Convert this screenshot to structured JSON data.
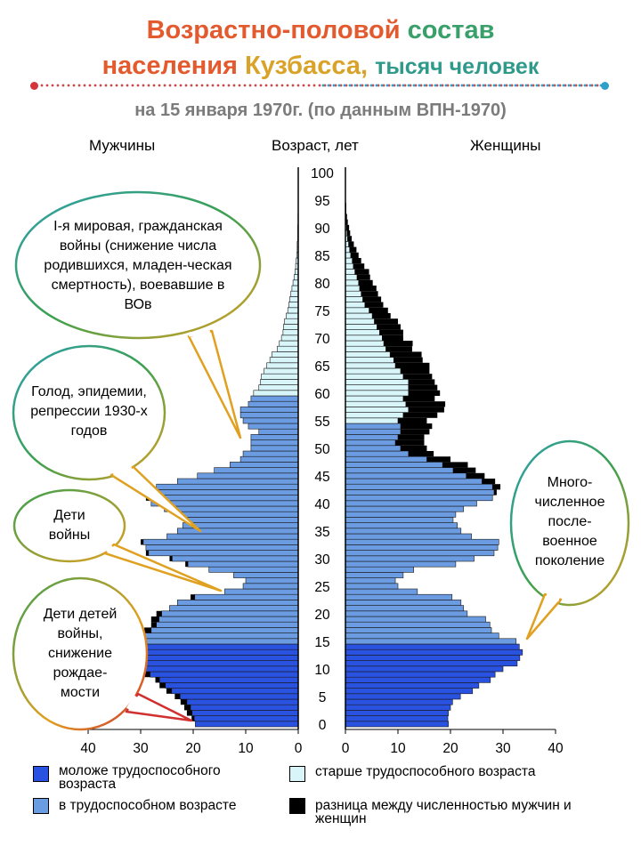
{
  "title_line1_a": "Возрастно-половой",
  "title_line1_b": "состав",
  "title_line2_a": "населения",
  "title_line2_b": "Кузбасса,",
  "title_line2_c": "тысяч человек",
  "subtitle": "на 15 января 1970г. (по данным ВПН-1970)",
  "header_male": "Мужчины",
  "header_age": "Возраст, лет",
  "header_female": "Женщины",
  "annotations": {
    "ww1": "I-я мировая, гражданская войны (снижение числа родившихся, младен-ческая смертность), воевавшие в ВОв",
    "famine": "Голод, эпидемии, репрессии 1930-х годов",
    "war_children": "Дети войны",
    "grandchildren": "Дети детей войны, снижение рождае-мости",
    "boom": "Много-численное после-военное поколение"
  },
  "legend": {
    "young": "моложе трудоспособного возраста",
    "working": "в трудоспособном возрасте",
    "old": "старше трудоспособного возраста",
    "diff": "разница между численностью мужчин и женщин"
  },
  "colors": {
    "young": "#2a52e0",
    "working": "#6b9be0",
    "old": "#d8f6fa",
    "diff": "#000000",
    "title_red": "#e45a2f",
    "title_green": "#3aa06a",
    "title_teal": "#2f9a8a"
  },
  "chart_data": {
    "type": "bar",
    "orientation": "horizontal-pyramid",
    "age_axis": {
      "min": 0,
      "max": 100,
      "ticks": [
        0,
        5,
        10,
        15,
        20,
        25,
        30,
        35,
        40,
        45,
        50,
        55,
        60,
        65,
        70,
        75,
        80,
        85,
        90,
        95,
        100
      ]
    },
    "x_ticks_male": [
      40,
      30,
      20,
      10,
      0
    ],
    "x_ticks_female": [
      0,
      10,
      20,
      30,
      40
    ],
    "xlim": [
      0,
      40
    ],
    "ages": [
      0,
      1,
      2,
      3,
      4,
      5,
      6,
      7,
      8,
      9,
      10,
      11,
      12,
      13,
      14,
      15,
      16,
      17,
      18,
      19,
      20,
      21,
      22,
      23,
      24,
      25,
      26,
      27,
      28,
      29,
      30,
      31,
      32,
      33,
      34,
      35,
      36,
      37,
      38,
      39,
      40,
      41,
      42,
      43,
      44,
      45,
      46,
      47,
      48,
      49,
      50,
      51,
      52,
      53,
      54,
      55,
      56,
      57,
      58,
      59,
      60,
      61,
      62,
      63,
      64,
      65,
      66,
      67,
      68,
      69,
      70,
      71,
      72,
      73,
      74,
      75,
      76,
      77,
      78,
      79,
      80,
      81,
      82,
      83,
      84,
      85,
      86,
      87,
      88,
      89,
      90,
      91,
      92,
      93,
      94,
      95,
      96,
      97,
      98,
      99
    ],
    "series": [
      {
        "name": "Мужчины",
        "values": [
          19.6,
          19.8,
          20.2,
          20.5,
          21.2,
          22.5,
          24.1,
          25.3,
          26.4,
          28.2,
          30.0,
          32.3,
          33.3,
          33.8,
          33.0,
          32.8,
          29.5,
          28.0,
          27.0,
          26.5,
          26.0,
          24.5,
          23.0,
          19.7,
          14.0,
          10.5,
          10.0,
          12.3,
          17.0,
          21.0,
          24.0,
          28.5,
          29.0,
          29.5,
          25.0,
          23.0,
          22.0,
          21.5,
          22.5,
          25.5,
          28.0,
          28.5,
          29.0,
          27.0,
          23.0,
          19.2,
          16.0,
          13.0,
          11.0,
          10.5,
          9.0,
          9.0,
          9.0,
          7.5,
          9.5,
          10.5,
          11.0,
          11.0,
          9.5,
          9.0,
          8.5,
          7.5,
          7.2,
          7.0,
          6.5,
          6.0,
          5.4,
          5.0,
          4.0,
          3.6,
          3.2,
          2.9,
          2.8,
          2.6,
          2.3,
          2.0,
          1.8,
          1.6,
          1.4,
          1.2,
          1.0,
          0.8,
          0.6,
          0.5,
          0.4,
          0.3,
          0.2,
          0.2,
          0.1,
          0.1,
          0.1,
          0.05,
          0.05,
          0.0,
          0.0,
          0.0,
          0.0,
          0.0,
          0.0,
          0.0
        ]
      },
      {
        "name": "Женщины",
        "values": [
          19.6,
          19.5,
          19.6,
          20.0,
          20.4,
          21.9,
          24.2,
          25.4,
          27.6,
          28.5,
          30.0,
          32.7,
          33.2,
          33.7,
          33.1,
          32.5,
          29.2,
          27.8,
          27.5,
          26.7,
          23.2,
          22.5,
          22.0,
          20.3,
          13.7,
          10.0,
          9.5,
          11.0,
          13.0,
          21.0,
          24.5,
          28.3,
          29.0,
          29.2,
          24.0,
          22.0,
          21.3,
          20.5,
          21.0,
          22.5,
          25.0,
          28.0,
          28.3,
          28.0,
          26.0,
          23.0,
          20.5,
          18.5,
          15.5,
          12.0,
          10.5,
          9.5,
          10.0,
          10.5,
          10.5,
          10.0,
          11.0,
          12.0,
          11.5,
          11.0,
          12.0,
          12.0,
          12.0,
          11.0,
          10.5,
          9.5,
          9.2,
          8.5,
          7.7,
          7.3,
          7.0,
          6.5,
          6.0,
          5.5,
          5.1,
          4.5,
          3.7,
          3.3,
          3.0,
          2.7,
          2.5,
          2.2,
          1.8,
          1.5,
          1.3,
          1.0,
          0.8,
          0.6,
          0.4,
          0.3,
          0.2,
          0.15,
          0.1,
          0.05,
          0.05,
          0.0,
          0.0,
          0.0,
          0.0,
          0.0
        ]
      },
      {
        "name": "разница между численностью мужчин и женщин",
        "side": [
          0,
          0,
          0,
          0,
          0,
          0,
          0,
          0,
          0,
          0,
          0,
          0,
          0,
          0,
          0,
          0,
          0,
          0,
          0,
          0,
          0,
          0,
          0,
          0,
          0,
          0,
          0,
          0,
          0,
          0,
          0,
          0,
          0,
          0,
          0,
          0,
          0,
          0,
          0,
          0,
          0,
          0,
          0,
          0,
          0,
          0,
          0,
          0,
          0,
          0,
          0,
          0,
          0,
          0,
          0,
          0,
          0,
          0,
          0,
          0,
          0,
          0,
          0,
          0,
          0,
          0,
          0,
          0,
          0,
          0,
          0,
          0,
          0,
          0,
          0,
          0,
          0,
          0,
          0,
          0,
          0,
          0,
          0,
          0,
          0,
          0,
          0,
          0,
          0,
          0,
          0,
          0,
          0,
          0,
          0,
          0,
          0,
          0,
          0,
          0
        ]
      }
    ],
    "female_extra": [
      0,
      0,
      0,
      0,
      0,
      0,
      0,
      0,
      0,
      0,
      0,
      0,
      0,
      0,
      0,
      0,
      0,
      0,
      0,
      0,
      0,
      0,
      0,
      0,
      0,
      0,
      0,
      0,
      0,
      0,
      0,
      0,
      0,
      0,
      0,
      0,
      0,
      0,
      0,
      0,
      0,
      0,
      0.5,
      1.5,
      2.5,
      3.5,
      4.3,
      4.8,
      4.5,
      4.8,
      5.0,
      5.5,
      5.0,
      5.5,
      6.0,
      5.5,
      6.5,
      6.8,
      7.5,
      6.0,
      6.0,
      5.5,
      5.0,
      5.5,
      5.5,
      6.5,
      5.5,
      6.0,
      5.0,
      5.5,
      4.0,
      4.5,
      4.5,
      4.5,
      3.5,
      3.6,
      3.5,
      3.5,
      3.2,
      3.2,
      2.7,
      2.5,
      2.7,
      2.1,
      1.7,
      1.5,
      1.3,
      1.0,
      0.8,
      0.6,
      0.5,
      0.3,
      0.2,
      0.1,
      0.1,
      0.0,
      0.0,
      0.0,
      0.0,
      0.0
    ],
    "male_extra": [
      0,
      0.5,
      1.0,
      1.2,
      1.2,
      1.0,
      1.0,
      1.1,
      0.8,
      1.0,
      1.0,
      1.2,
      1.4,
      1.0,
      0.8,
      1.2,
      1.2,
      1.3,
      1.0,
      1.5,
      1.0,
      0.0,
      0.0,
      0.8,
      0.0,
      0.0,
      0.0,
      0.0,
      0.0,
      0.5,
      0.5,
      0.5,
      0.0,
      0.5,
      0.0,
      0.0,
      0.0,
      0.0,
      0.5,
      0.0,
      0.0,
      0.5,
      0.5,
      0,
      0,
      0,
      0,
      0,
      0,
      0,
      0,
      0,
      0,
      0,
      0,
      0,
      0,
      0,
      0,
      0,
      0,
      0,
      0,
      0,
      0,
      0,
      0,
      0,
      0,
      0,
      0,
      0,
      0,
      0,
      0,
      0,
      0,
      0,
      0,
      0,
      0,
      0,
      0,
      0,
      0,
      0,
      0,
      0,
      0,
      0,
      0,
      0,
      0,
      0,
      0,
      0,
      0,
      0,
      0,
      0
    ],
    "age_groups": {
      "young_max": 15,
      "working_max_male": 59,
      "working_max_female": 54
    }
  }
}
